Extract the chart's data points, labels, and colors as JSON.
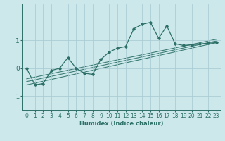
{
  "title": "",
  "xlabel": "Humidex (Indice chaleur)",
  "ylabel": "",
  "bg_color": "#cce8eb",
  "grid_color": "#aacdd4",
  "line_color": "#2d7068",
  "xlim": [
    -0.5,
    23.5
  ],
  "ylim": [
    -1.5,
    2.3
  ],
  "yticks": [
    -1,
    0,
    1
  ],
  "xticks": [
    0,
    1,
    2,
    3,
    4,
    5,
    6,
    7,
    8,
    9,
    10,
    11,
    12,
    13,
    14,
    15,
    16,
    17,
    18,
    19,
    20,
    21,
    22,
    23
  ],
  "main_line_x": [
    0,
    1,
    2,
    3,
    4,
    5,
    6,
    7,
    8,
    9,
    10,
    11,
    12,
    13,
    14,
    15,
    16,
    17,
    18,
    19,
    20,
    21,
    22,
    23
  ],
  "main_line_y": [
    0.0,
    -0.6,
    -0.55,
    -0.08,
    0.0,
    0.38,
    0.0,
    -0.18,
    -0.22,
    0.32,
    0.58,
    0.72,
    0.78,
    1.42,
    1.58,
    1.65,
    1.08,
    1.52,
    0.88,
    0.82,
    0.84,
    0.87,
    0.9,
    0.92
  ],
  "reg_lines": [
    {
      "x": [
        0,
        23
      ],
      "y": [
        -0.6,
        0.92
      ]
    },
    {
      "x": [
        0,
        23
      ],
      "y": [
        -0.48,
        0.98
      ]
    },
    {
      "x": [
        0,
        23
      ],
      "y": [
        -0.38,
        1.04
      ]
    }
  ],
  "xlabel_fontsize": 6.0,
  "tick_fontsize": 5.5,
  "ytick_fontsize": 6.5
}
